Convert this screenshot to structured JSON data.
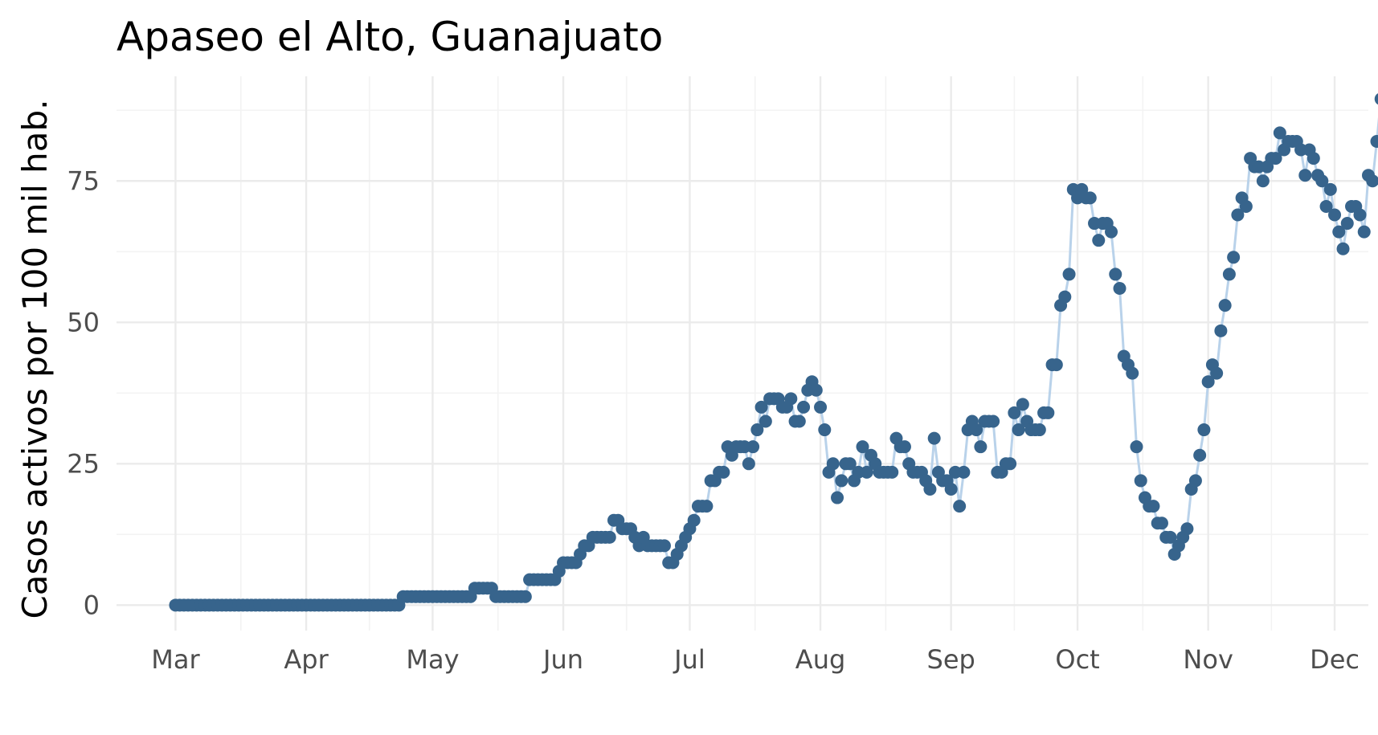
{
  "chart_data": {
    "type": "line",
    "title": "Apaseo el Alto, Guanajuato",
    "xlabel": "",
    "ylabel": "Casos activos por 100 mil hab.",
    "x_tick_labels": [
      "Mar",
      "Apr",
      "May",
      "Jun",
      "Jul",
      "Aug",
      "Sep",
      "Oct",
      "Nov",
      "Dec"
    ],
    "x_tick_dates": [
      "2020-03-01",
      "2020-04-01",
      "2020-05-01",
      "2020-06-01",
      "2020-07-01",
      "2020-08-01",
      "2020-09-01",
      "2020-10-01",
      "2020-11-01",
      "2020-12-01"
    ],
    "y_ticks": [
      0,
      25,
      50,
      75
    ],
    "y_tick_labels": [
      "0",
      "25",
      "50",
      "75"
    ],
    "xlim": [
      "2020-02-16",
      "2020-12-09"
    ],
    "ylim": [
      -4.5,
      93.5
    ],
    "grid": true,
    "legend": "none",
    "colors": {
      "points": "#37648c",
      "line": "#b9d2ea",
      "grid": "#ebebeb"
    },
    "series": [
      {
        "start_date": "2020-03-01",
        "interval_days": 1,
        "values": [
          0,
          0,
          0,
          0,
          0,
          0,
          0,
          0,
          0,
          0,
          0,
          0,
          0,
          0,
          0,
          0,
          0,
          0,
          0,
          0,
          0,
          0,
          0,
          0,
          0,
          0,
          0,
          0,
          0,
          0,
          0,
          0,
          0,
          0,
          0,
          0,
          0,
          0,
          0,
          0,
          0,
          0,
          0,
          0,
          0,
          0,
          0,
          0,
          0,
          0,
          0,
          0,
          0,
          0,
          1.5,
          1.5,
          1.5,
          1.5,
          1.5,
          1.5,
          1.5,
          1.5,
          1.5,
          1.5,
          1.5,
          1.5,
          1.5,
          1.5,
          1.5,
          1.5,
          1.5,
          3,
          3,
          3,
          3,
          3,
          1.5,
          1.5,
          1.5,
          1.5,
          1.5,
          1.5,
          1.5,
          1.5,
          4.5,
          4.5,
          4.5,
          4.5,
          4.5,
          4.5,
          4.5,
          6,
          7.5,
          7.5,
          7.5,
          7.5,
          9,
          10.5,
          10.5,
          12,
          12,
          12,
          12,
          12,
          15,
          15,
          13.5,
          13.5,
          13.5,
          12,
          10.5,
          12,
          10.5,
          10.5,
          10.5,
          10.5,
          10.5,
          7.5,
          7.5,
          9,
          10.5,
          12,
          13.5,
          15,
          17.5,
          17.5,
          17.5,
          22,
          22,
          23.5,
          23.5,
          28,
          26.5,
          28,
          28,
          28,
          25,
          28,
          31,
          35,
          32.5,
          36.5,
          36.5,
          36.5,
          35,
          35,
          36.5,
          32.5,
          32.5,
          35,
          38,
          39.5,
          38,
          35,
          31,
          23.5,
          25,
          19,
          22,
          25,
          25,
          22,
          23.5,
          28,
          23.5,
          26.5,
          25,
          23.5,
          23.5,
          23.5,
          23.5,
          29.5,
          28,
          28,
          25,
          23.5,
          23.5,
          23.5,
          22,
          20.5,
          29.5,
          23.5,
          22,
          22,
          20.5,
          23.5,
          17.5,
          23.5,
          31,
          32.5,
          31,
          28,
          32.5,
          32.5,
          32.5,
          23.5,
          23.5,
          25,
          25,
          34,
          31,
          35.5,
          32.5,
          31,
          31,
          31,
          34,
          34,
          42.5,
          42.5,
          53,
          54.5,
          58.5,
          73.5,
          72,
          73.5,
          72,
          72,
          67.5,
          64.5,
          67.5,
          67.5,
          66,
          58.5,
          56,
          44,
          42.5,
          41,
          28,
          22,
          19,
          17.5,
          17.5,
          14.5,
          14.5,
          12,
          12,
          9,
          10.5,
          12,
          13.5,
          20.5,
          22,
          26.5,
          31,
          39.5,
          42.5,
          41,
          48.5,
          53,
          58.5,
          61.5,
          69,
          72,
          70.5,
          79,
          77.5,
          77.5,
          75,
          77.5,
          79,
          79,
          83.5,
          80.5,
          82,
          82,
          82,
          80.5,
          76,
          80.5,
          79,
          76,
          75,
          70.5,
          73.5,
          69,
          66,
          63,
          67.5,
          70.5,
          70.5,
          69,
          66,
          76,
          75,
          82,
          89.5
        ]
      }
    ]
  }
}
